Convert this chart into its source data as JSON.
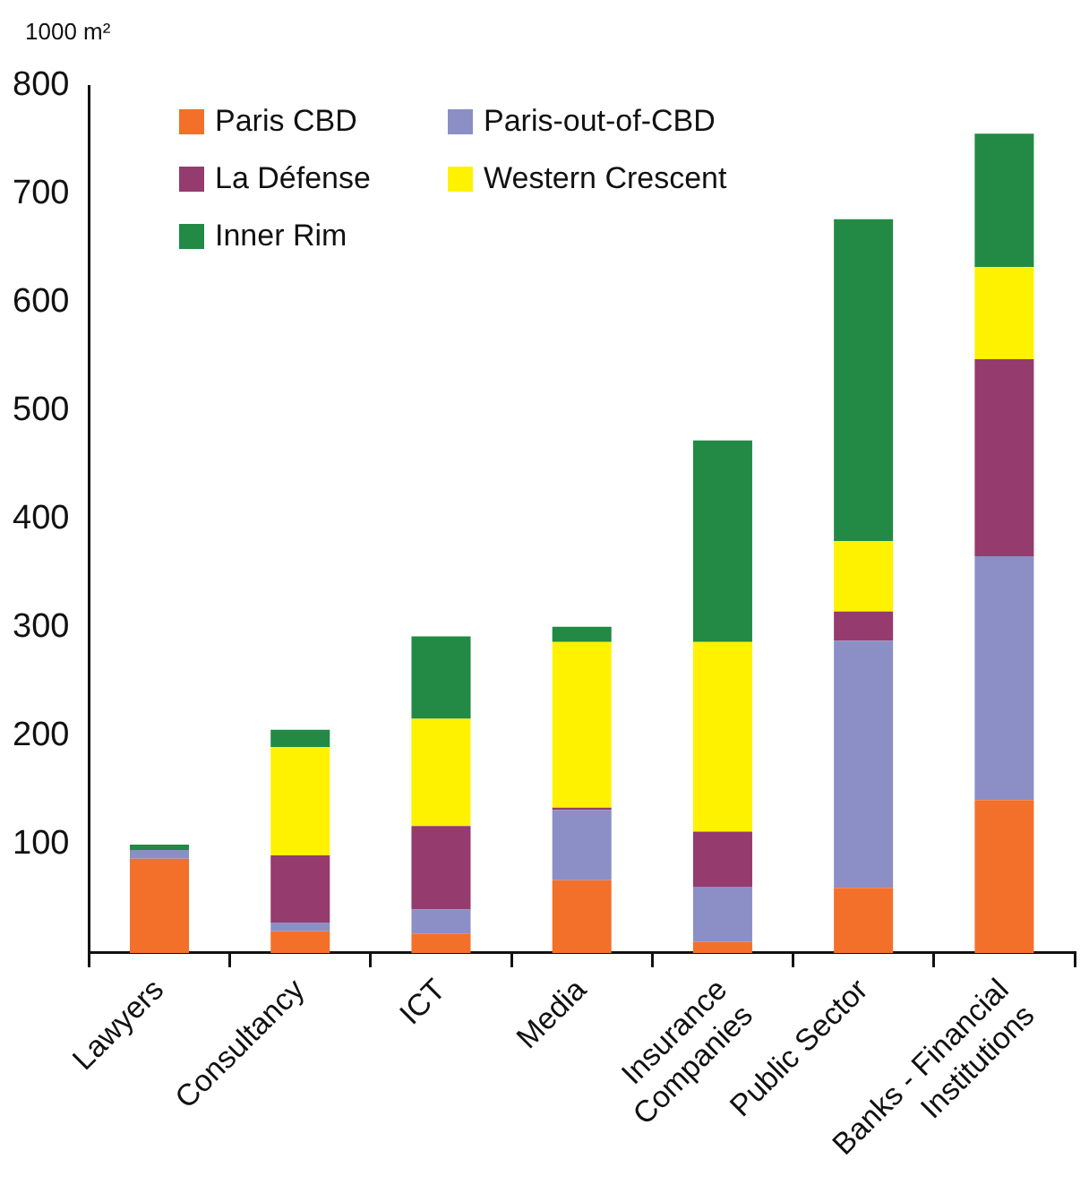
{
  "chart_data": {
    "type": "bar",
    "stacked": true,
    "ylabel": "1000 m²",
    "categories": [
      "Lawyers",
      "Consultancy",
      "ICT",
      "Media",
      "Insurance Companies",
      "Public Sector",
      "Banks - Financial Institutions"
    ],
    "series": [
      {
        "name": "Paris CBD",
        "color": "#f3702b",
        "values": [
          87,
          20,
          18,
          67,
          10,
          60,
          141
        ]
      },
      {
        "name": "Paris-out-of-CBD",
        "color": "#8b8fc5",
        "values": [
          8,
          8,
          22,
          65,
          51,
          228,
          225
        ]
      },
      {
        "name": "La Défense",
        "color": "#953b6d",
        "values": [
          0,
          62,
          77,
          2,
          51,
          27,
          182
        ]
      },
      {
        "name": "Western Crescent",
        "color": "#fef200",
        "values": [
          0,
          100,
          99,
          153,
          175,
          65,
          85
        ]
      },
      {
        "name": "Inner Rim",
        "color": "#228a45",
        "values": [
          5,
          16,
          76,
          14,
          186,
          297,
          123
        ]
      }
    ],
    "ylim": [
      0,
      800
    ],
    "yticks": [
      100,
      200,
      300,
      400,
      500,
      600,
      700,
      800
    ],
    "grid": false,
    "legend": "top left"
  }
}
